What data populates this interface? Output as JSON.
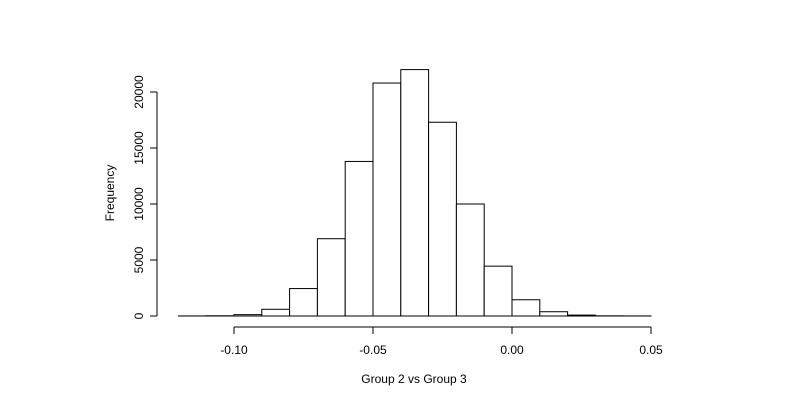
{
  "chart_data": {
    "type": "bar",
    "subtype": "histogram",
    "title": "",
    "xlabel": "Group 2 vs Group 3",
    "ylabel": "Frequency",
    "xlim": [
      -0.12,
      0.05
    ],
    "ylim": [
      0,
      22000
    ],
    "grid": false,
    "x_ticks": [
      -0.1,
      -0.05,
      0.0,
      0.05
    ],
    "x_tick_labels": [
      "-0.10",
      "-0.05",
      "0.00",
      "0.05"
    ],
    "y_ticks": [
      0,
      5000,
      10000,
      15000,
      20000
    ],
    "y_tick_labels": [
      "0",
      "5000",
      "10000",
      "15000",
      "20000"
    ],
    "bins": [
      {
        "start": -0.12,
        "end": -0.11,
        "count": 5
      },
      {
        "start": -0.11,
        "end": -0.1,
        "count": 20
      },
      {
        "start": -0.1,
        "end": -0.09,
        "count": 120
      },
      {
        "start": -0.09,
        "end": -0.08,
        "count": 600
      },
      {
        "start": -0.08,
        "end": -0.07,
        "count": 2450
      },
      {
        "start": -0.07,
        "end": -0.06,
        "count": 6900
      },
      {
        "start": -0.06,
        "end": -0.05,
        "count": 13800
      },
      {
        "start": -0.05,
        "end": -0.04,
        "count": 20800
      },
      {
        "start": -0.04,
        "end": -0.03,
        "count": 22000
      },
      {
        "start": -0.03,
        "end": -0.02,
        "count": 17300
      },
      {
        "start": -0.02,
        "end": -0.01,
        "count": 10000
      },
      {
        "start": -0.01,
        "end": 0.0,
        "count": 4450
      },
      {
        "start": 0.0,
        "end": 0.01,
        "count": 1450
      },
      {
        "start": 0.01,
        "end": 0.02,
        "count": 380
      },
      {
        "start": 0.02,
        "end": 0.03,
        "count": 80
      },
      {
        "start": 0.03,
        "end": 0.04,
        "count": 15
      },
      {
        "start": 0.04,
        "end": 0.05,
        "count": 5
      }
    ]
  }
}
